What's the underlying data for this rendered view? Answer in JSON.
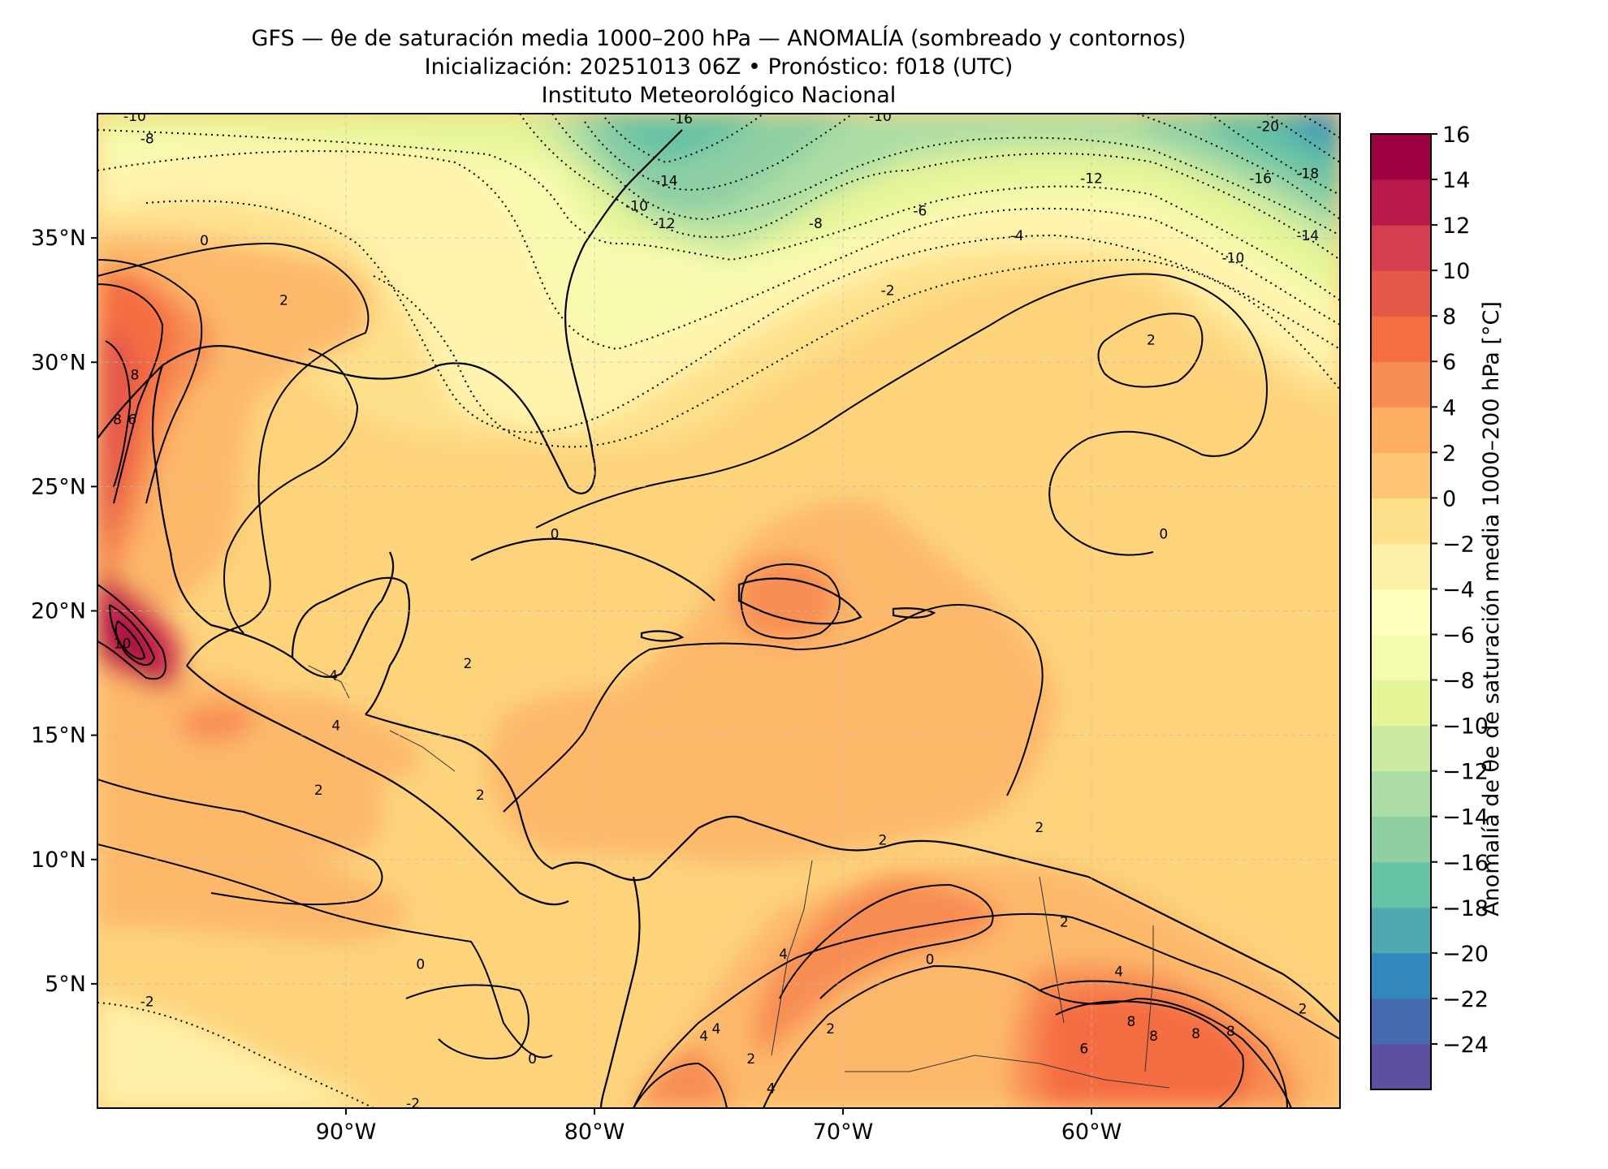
{
  "header": {
    "title_line1": "GFS — θe de saturación media 1000–200 hPa — ANOMALÍA (sombreado y contornos)",
    "title_line2": "Inicialización: 20251013 06Z   •   Pronóstico: f018 (UTC)",
    "title_line3": "Instituto Meteorológico Nacional"
  },
  "map": {
    "lon_range": [
      -100,
      -50
    ],
    "lat_range": [
      0,
      40
    ],
    "lat_ticks": [
      {
        "value": 35,
        "label": "35°N"
      },
      {
        "value": 30,
        "label": "30°N"
      },
      {
        "value": 25,
        "label": "25°N"
      },
      {
        "value": 20,
        "label": "20°N"
      },
      {
        "value": 15,
        "label": "15°N"
      },
      {
        "value": 10,
        "label": "10°N"
      },
      {
        "value": 5,
        "label": "5°N"
      }
    ],
    "lon_ticks": [
      {
        "value": -90,
        "label": "90°W"
      },
      {
        "value": -80,
        "label": "80°W"
      },
      {
        "value": -70,
        "label": "70°W"
      },
      {
        "value": -60,
        "label": "60°W"
      }
    ],
    "contour_labels": [
      {
        "text": "-10",
        "lon": -98.5,
        "lat": 39.9
      },
      {
        "text": "-8",
        "lon": -98,
        "lat": 39
      },
      {
        "text": "-16",
        "lon": -76.5,
        "lat": 39.8
      },
      {
        "text": "-10",
        "lon": -68.5,
        "lat": 39.9
      },
      {
        "text": "-20",
        "lon": -52.9,
        "lat": 39.5
      },
      {
        "text": "-14",
        "lon": -77.1,
        "lat": 37.3
      },
      {
        "text": "-10",
        "lon": -78.3,
        "lat": 36.3
      },
      {
        "text": "-12",
        "lon": -77.2,
        "lat": 35.6
      },
      {
        "text": "-8",
        "lon": -71.1,
        "lat": 35.6
      },
      {
        "text": "-6",
        "lon": -66.9,
        "lat": 36.1
      },
      {
        "text": "-12",
        "lon": -60,
        "lat": 37.4
      },
      {
        "text": "-16",
        "lon": -53.2,
        "lat": 37.4
      },
      {
        "text": "-18",
        "lon": -51.3,
        "lat": 37.6
      },
      {
        "text": "-4",
        "lon": -63,
        "lat": 35.1
      },
      {
        "text": "-14",
        "lon": -51.3,
        "lat": 35.1
      },
      {
        "text": "-10",
        "lon": -54.3,
        "lat": 34.2
      },
      {
        "text": "-2",
        "lon": -68.2,
        "lat": 32.9
      },
      {
        "text": "0",
        "lon": -95.7,
        "lat": 34.9
      },
      {
        "text": "2",
        "lon": -92.5,
        "lat": 32.5
      },
      {
        "text": "2",
        "lon": -57.6,
        "lat": 30.9
      },
      {
        "text": "8",
        "lon": -98.5,
        "lat": 29.5
      },
      {
        "text": "8",
        "lon": -99.2,
        "lat": 27.7
      },
      {
        "text": "6",
        "lon": -98.6,
        "lat": 27.7
      },
      {
        "text": "0",
        "lon": -81.6,
        "lat": 23.1
      },
      {
        "text": "0",
        "lon": -57.1,
        "lat": 23.1
      },
      {
        "text": "2",
        "lon": -85.1,
        "lat": 17.9
      },
      {
        "text": "4",
        "lon": -90.5,
        "lat": 17.4
      },
      {
        "text": "4",
        "lon": -90.4,
        "lat": 15.4
      },
      {
        "text": "10",
        "lon": -99,
        "lat": 18.7
      },
      {
        "text": "2",
        "lon": -91.1,
        "lat": 12.8
      },
      {
        "text": "2",
        "lon": -84.6,
        "lat": 12.6
      },
      {
        "text": "2",
        "lon": -68.4,
        "lat": 10.8
      },
      {
        "text": "2",
        "lon": -62.1,
        "lat": 11.3
      },
      {
        "text": "4",
        "lon": -72.4,
        "lat": 6.2
      },
      {
        "text": "2",
        "lon": -61.1,
        "lat": 7.5
      },
      {
        "text": "0",
        "lon": -87,
        "lat": 5.8
      },
      {
        "text": "0",
        "lon": -66.5,
        "lat": 6
      },
      {
        "text": "4",
        "lon": -58.9,
        "lat": 5.5
      },
      {
        "text": "-2",
        "lon": -98,
        "lat": 4.3
      },
      {
        "text": "4",
        "lon": -75.1,
        "lat": 3.2
      },
      {
        "text": "8",
        "lon": -58.4,
        "lat": 3.5
      },
      {
        "text": "8",
        "lon": -57.5,
        "lat": 2.9
      },
      {
        "text": "8",
        "lon": -55.8,
        "lat": 3
      },
      {
        "text": "8",
        "lon": -54.4,
        "lat": 3.1
      },
      {
        "text": "2",
        "lon": -51.5,
        "lat": 4
      },
      {
        "text": "2",
        "lon": -70.5,
        "lat": 3.2
      },
      {
        "text": "6",
        "lon": -60.3,
        "lat": 2.4
      },
      {
        "text": "4",
        "lon": -75.6,
        "lat": 2.9
      },
      {
        "text": "4",
        "lon": -72.9,
        "lat": 0.8
      },
      {
        "text": "2",
        "lon": -73.7,
        "lat": 2
      },
      {
        "text": "0",
        "lon": -82.5,
        "lat": 2
      },
      {
        "text": "-2",
        "lon": -87.3,
        "lat": 0.2
      }
    ]
  },
  "colorbar": {
    "label": "Anomalía de θe de saturación media 1000–200 hPa [°C]",
    "levels": [
      -24,
      -22,
      -20,
      -18,
      -16,
      -14,
      -12,
      -10,
      -8,
      -6,
      -4,
      -2,
      0,
      2,
      4,
      6,
      8,
      10,
      12,
      14,
      16
    ],
    "tick_labels": [
      "16",
      "14",
      "12",
      "10",
      "8",
      "6",
      "4",
      "2",
      "0",
      "−2",
      "−4",
      "−6",
      "−8",
      "−10",
      "−12",
      "−14",
      "−16",
      "−18",
      "−20",
      "−22",
      "−24"
    ],
    "colors": [
      "#5e4fa2",
      "#4669af",
      "#3288bd",
      "#4ea7b1",
      "#66c2a5",
      "#8ecfa4",
      "#abdda4",
      "#cbe9a0",
      "#e6f598",
      "#f4faae",
      "#ffffbf",
      "#fff0a8",
      "#fee08b",
      "#fdc574",
      "#fdae61",
      "#f88d52",
      "#f46d43",
      "#e55749",
      "#d53e4f",
      "#b81a4b",
      "#9e0142"
    ]
  }
}
